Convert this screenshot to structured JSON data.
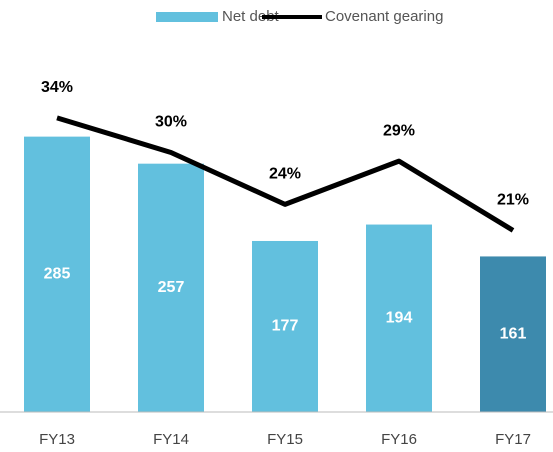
{
  "chart_data": {
    "type": "bar-line",
    "categories": [
      "FY13",
      "FY14",
      "FY15",
      "FY16",
      "FY17"
    ],
    "series": [
      {
        "name": "Net debt",
        "type": "bar",
        "color": "#62c0de",
        "colors": [
          "#62c0de",
          "#62c0de",
          "#62c0de",
          "#62c0de",
          "#3d8aad"
        ],
        "values": [
          285,
          257,
          177,
          194,
          161
        ]
      },
      {
        "name": "Covenant gearing",
        "type": "line",
        "axis": "y2",
        "color": "#000000",
        "values": [
          34,
          30,
          24,
          29,
          21
        ],
        "value_labels": [
          "34%",
          "30%",
          "24%",
          "29%",
          "21%"
        ]
      }
    ],
    "ylim": [
      0,
      385
    ],
    "y2lim": [
      0,
      43
    ],
    "legend": "top"
  }
}
